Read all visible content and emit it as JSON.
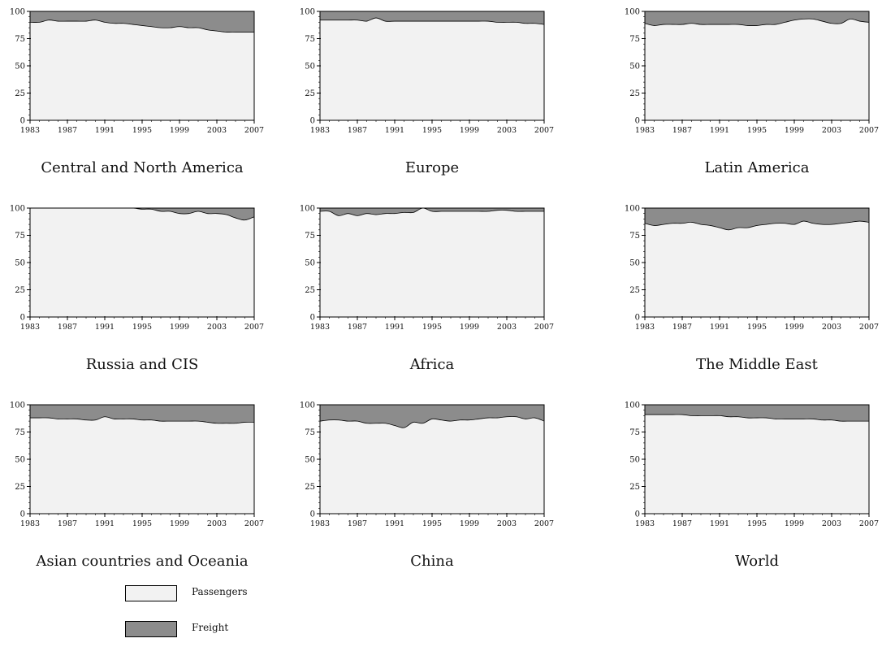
{
  "legend": {
    "passengers_label": "Passengers",
    "freight_label": "Freight"
  },
  "colors": {
    "passengers": "#f2f2f2",
    "freight": "#8c8c8c",
    "outline": "#000000"
  },
  "chart_data": [
    {
      "type": "area",
      "title": "Central and North America",
      "x": [
        1983,
        1984,
        1985,
        1986,
        1987,
        1988,
        1989,
        1990,
        1991,
        1992,
        1993,
        1994,
        1995,
        1996,
        1997,
        1998,
        1999,
        2000,
        2001,
        2002,
        2003,
        2004,
        2005,
        2006,
        2007
      ],
      "series": [
        {
          "name": "Passengers",
          "values": [
            90,
            90,
            92,
            91,
            91,
            91,
            91,
            92,
            90,
            89,
            89,
            88,
            87,
            86,
            85,
            85,
            86,
            85,
            85,
            83,
            82,
            81,
            81,
            81,
            81
          ]
        },
        {
          "name": "Freight",
          "values": [
            10,
            10,
            8,
            9,
            9,
            9,
            9,
            8,
            10,
            11,
            11,
            12,
            13,
            14,
            15,
            15,
            14,
            15,
            15,
            17,
            18,
            19,
            19,
            19,
            19
          ]
        }
      ],
      "xticks": [
        "1983",
        "1987",
        "1991",
        "1995",
        "1999",
        "2003",
        "2007"
      ],
      "yticks": [
        "0",
        "25",
        "50",
        "75",
        "100"
      ],
      "ylim": [
        0,
        100
      ],
      "stacked": true,
      "grid": false
    },
    {
      "type": "area",
      "title": "Europe",
      "x": [
        1983,
        1984,
        1985,
        1986,
        1987,
        1988,
        1989,
        1990,
        1991,
        1992,
        1993,
        1994,
        1995,
        1996,
        1997,
        1998,
        1999,
        2000,
        2001,
        2002,
        2003,
        2004,
        2005,
        2006,
        2007
      ],
      "series": [
        {
          "name": "Passengers",
          "values": [
            92,
            92,
            92,
            92,
            92,
            91,
            94,
            91,
            91,
            91,
            91,
            91,
            91,
            91,
            91,
            91,
            91,
            91,
            91,
            90,
            90,
            90,
            89,
            89,
            88
          ]
        },
        {
          "name": "Freight",
          "values": [
            8,
            8,
            8,
            8,
            8,
            9,
            6,
            9,
            9,
            9,
            9,
            9,
            9,
            9,
            9,
            9,
            9,
            9,
            9,
            10,
            10,
            10,
            11,
            11,
            12
          ]
        }
      ],
      "xticks": [
        "1983",
        "1987",
        "1991",
        "1995",
        "1999",
        "2003",
        "2007"
      ],
      "yticks": [
        "0",
        "25",
        "50",
        "75",
        "100"
      ],
      "ylim": [
        0,
        100
      ],
      "stacked": true,
      "grid": false
    },
    {
      "type": "area",
      "title": "Latin America",
      "x": [
        1983,
        1984,
        1985,
        1986,
        1987,
        1988,
        1989,
        1990,
        1991,
        1992,
        1993,
        1994,
        1995,
        1996,
        1997,
        1998,
        1999,
        2000,
        2001,
        2002,
        2003,
        2004,
        2005,
        2006,
        2007
      ],
      "series": [
        {
          "name": "Passengers",
          "values": [
            89,
            87,
            88,
            88,
            88,
            89,
            88,
            88,
            88,
            88,
            88,
            87,
            87,
            88,
            88,
            90,
            92,
            93,
            93,
            91,
            89,
            89,
            93,
            91,
            90
          ]
        },
        {
          "name": "Freight",
          "values": [
            11,
            13,
            12,
            12,
            12,
            11,
            12,
            12,
            12,
            12,
            12,
            13,
            13,
            12,
            12,
            10,
            8,
            7,
            7,
            9,
            11,
            11,
            7,
            9,
            10
          ]
        }
      ],
      "xticks": [
        "1983",
        "1987",
        "1991",
        "1995",
        "1999",
        "2003",
        "2007"
      ],
      "yticks": [
        "0",
        "25",
        "50",
        "75",
        "100"
      ],
      "ylim": [
        0,
        100
      ],
      "stacked": true,
      "grid": false
    },
    {
      "type": "area",
      "title": "Russia and CIS",
      "x": [
        1983,
        1984,
        1985,
        1986,
        1987,
        1988,
        1989,
        1990,
        1991,
        1992,
        1993,
        1994,
        1995,
        1996,
        1997,
        1998,
        1999,
        2000,
        2001,
        2002,
        2003,
        2004,
        2005,
        2006,
        2007
      ],
      "series": [
        {
          "name": "Passengers",
          "values": [
            100,
            100,
            100,
            100,
            100,
            100,
            100,
            100,
            100,
            100,
            100,
            100,
            99,
            99,
            97,
            97,
            95,
            95,
            97,
            95,
            95,
            94,
            91,
            89,
            92
          ]
        },
        {
          "name": "Freight",
          "values": [
            0,
            0,
            0,
            0,
            0,
            0,
            0,
            0,
            0,
            0,
            0,
            0,
            1,
            1,
            3,
            3,
            5,
            5,
            3,
            5,
            5,
            6,
            9,
            11,
            8
          ]
        }
      ],
      "xticks": [
        "1983",
        "1987",
        "1991",
        "1995",
        "1999",
        "2003",
        "2007"
      ],
      "yticks": [
        "0",
        "25",
        "50",
        "75",
        "100"
      ],
      "ylim": [
        0,
        100
      ],
      "stacked": true,
      "grid": false
    },
    {
      "type": "area",
      "title": "Africa",
      "x": [
        1983,
        1984,
        1985,
        1986,
        1987,
        1988,
        1989,
        1990,
        1991,
        1992,
        1993,
        1994,
        1995,
        1996,
        1997,
        1998,
        1999,
        2000,
        2001,
        2002,
        2003,
        2004,
        2005,
        2006,
        2007
      ],
      "series": [
        {
          "name": "Passengers",
          "values": [
            97,
            97,
            93,
            95,
            93,
            95,
            94,
            95,
            95,
            96,
            96,
            100,
            97,
            97,
            97,
            97,
            97,
            97,
            97,
            98,
            98,
            97,
            97,
            97,
            97
          ]
        },
        {
          "name": "Freight",
          "values": [
            3,
            3,
            7,
            5,
            7,
            5,
            6,
            5,
            5,
            4,
            4,
            0,
            3,
            3,
            3,
            3,
            3,
            3,
            3,
            2,
            2,
            3,
            3,
            3,
            3
          ]
        }
      ],
      "xticks": [
        "1983",
        "1987",
        "1991",
        "1995",
        "1999",
        "2003",
        "2007"
      ],
      "yticks": [
        "0",
        "25",
        "50",
        "75",
        "100"
      ],
      "ylim": [
        0,
        100
      ],
      "stacked": true,
      "grid": false
    },
    {
      "type": "area",
      "title": "The Middle East",
      "x": [
        1983,
        1984,
        1985,
        1986,
        1987,
        1988,
        1989,
        1990,
        1991,
        1992,
        1993,
        1994,
        1995,
        1996,
        1997,
        1998,
        1999,
        2000,
        2001,
        2002,
        2003,
        2004,
        2005,
        2006,
        2007
      ],
      "series": [
        {
          "name": "Passengers",
          "values": [
            86,
            84,
            85,
            86,
            86,
            87,
            85,
            84,
            82,
            80,
            82,
            82,
            84,
            85,
            86,
            86,
            85,
            88,
            86,
            85,
            85,
            86,
            87,
            88,
            87
          ]
        },
        {
          "name": "Freight",
          "values": [
            14,
            16,
            15,
            14,
            14,
            13,
            15,
            16,
            18,
            20,
            18,
            18,
            16,
            15,
            14,
            14,
            15,
            12,
            14,
            15,
            15,
            14,
            13,
            12,
            13
          ]
        }
      ],
      "xticks": [
        "1983",
        "1987",
        "1991",
        "1995",
        "1999",
        "2003",
        "2007"
      ],
      "yticks": [
        "0",
        "25",
        "50",
        "75",
        "100"
      ],
      "ylim": [
        0,
        100
      ],
      "stacked": true,
      "grid": false
    },
    {
      "type": "area",
      "title": "Asian countries and Oceania",
      "x": [
        1983,
        1984,
        1985,
        1986,
        1987,
        1988,
        1989,
        1990,
        1991,
        1992,
        1993,
        1994,
        1995,
        1996,
        1997,
        1998,
        1999,
        2000,
        2001,
        2002,
        2003,
        2004,
        2005,
        2006,
        2007
      ],
      "series": [
        {
          "name": "Passengers",
          "values": [
            88,
            88,
            88,
            87,
            87,
            87,
            86,
            86,
            89,
            87,
            87,
            87,
            86,
            86,
            85,
            85,
            85,
            85,
            85,
            84,
            83,
            83,
            83,
            84,
            84
          ]
        },
        {
          "name": "Freight",
          "values": [
            12,
            12,
            12,
            13,
            13,
            13,
            14,
            14,
            11,
            13,
            13,
            13,
            14,
            14,
            15,
            15,
            15,
            15,
            15,
            16,
            17,
            17,
            17,
            16,
            16
          ]
        }
      ],
      "xticks": [
        "1983",
        "1987",
        "1991",
        "1995",
        "1999",
        "2003",
        "2007"
      ],
      "yticks": [
        "0",
        "25",
        "50",
        "75",
        "100"
      ],
      "ylim": [
        0,
        100
      ],
      "stacked": true,
      "grid": false
    },
    {
      "type": "area",
      "title": "China",
      "x": [
        1983,
        1984,
        1985,
        1986,
        1987,
        1988,
        1989,
        1990,
        1991,
        1992,
        1993,
        1994,
        1995,
        1996,
        1997,
        1998,
        1999,
        2000,
        2001,
        2002,
        2003,
        2004,
        2005,
        2006,
        2007
      ],
      "series": [
        {
          "name": "Passengers",
          "values": [
            85,
            86,
            86,
            85,
            85,
            83,
            83,
            83,
            81,
            79,
            84,
            83,
            87,
            86,
            85,
            86,
            86,
            87,
            88,
            88,
            89,
            89,
            87,
            88,
            85
          ]
        },
        {
          "name": "Freight",
          "values": [
            15,
            14,
            14,
            15,
            15,
            17,
            17,
            17,
            19,
            21,
            16,
            17,
            13,
            14,
            15,
            14,
            14,
            13,
            12,
            12,
            11,
            11,
            13,
            12,
            15
          ]
        }
      ],
      "xticks": [
        "1983",
        "1987",
        "1991",
        "1995",
        "1999",
        "2003",
        "2007"
      ],
      "yticks": [
        "0",
        "25",
        "50",
        "75",
        "100"
      ],
      "ylim": [
        0,
        100
      ],
      "stacked": true,
      "grid": false
    },
    {
      "type": "area",
      "title": "World",
      "x": [
        1983,
        1984,
        1985,
        1986,
        1987,
        1988,
        1989,
        1990,
        1991,
        1992,
        1993,
        1994,
        1995,
        1996,
        1997,
        1998,
        1999,
        2000,
        2001,
        2002,
        2003,
        2004,
        2005,
        2006,
        2007
      ],
      "series": [
        {
          "name": "Passengers",
          "values": [
            91,
            91,
            91,
            91,
            91,
            90,
            90,
            90,
            90,
            89,
            89,
            88,
            88,
            88,
            87,
            87,
            87,
            87,
            87,
            86,
            86,
            85,
            85,
            85,
            85
          ]
        },
        {
          "name": "Freight",
          "values": [
            9,
            9,
            9,
            9,
            9,
            10,
            10,
            10,
            10,
            11,
            11,
            12,
            12,
            12,
            13,
            13,
            13,
            13,
            13,
            14,
            14,
            15,
            15,
            15,
            15
          ]
        }
      ],
      "xticks": [
        "1983",
        "1987",
        "1991",
        "1995",
        "1999",
        "2003",
        "2007"
      ],
      "yticks": [
        "0",
        "25",
        "50",
        "75",
        "100"
      ],
      "ylim": [
        0,
        100
      ],
      "stacked": true,
      "grid": false
    }
  ]
}
